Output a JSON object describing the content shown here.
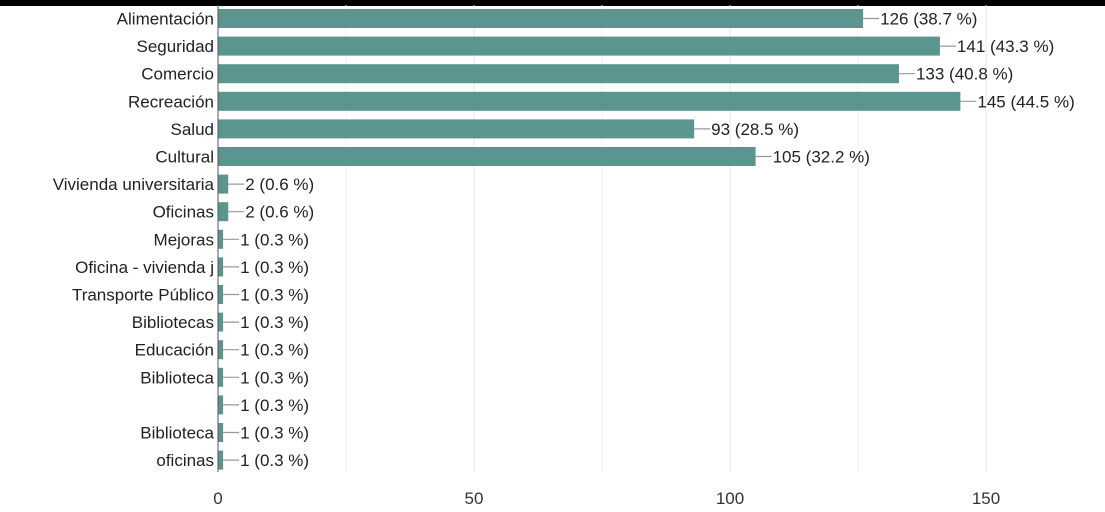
{
  "chart_data": {
    "type": "bar",
    "orientation": "horizontal",
    "categories": [
      "Alimentación",
      "Seguridad",
      "Comercio",
      "Recreación",
      "Salud",
      "Cultural",
      "Vivienda universitaria",
      "Oficinas",
      "Mejoras",
      "Oficina - vivienda j",
      "Transporte Público",
      "Bibliotecas",
      "Educación",
      "Biblioteca",
      "",
      "Biblioteca",
      "oficinas"
    ],
    "values": [
      126,
      141,
      133,
      145,
      93,
      105,
      2,
      2,
      1,
      1,
      1,
      1,
      1,
      1,
      1,
      1,
      1
    ],
    "data_labels": [
      "126 (38.7 %)",
      "141 (43.3 %)",
      "133 (40.8 %)",
      "145 (44.5 %)",
      "93 (28.5 %)",
      "105 (32.2 %)",
      "2 (0.6 %)",
      "2 (0.6 %)",
      "1 (0.3 %)",
      "1 (0.3 %)",
      "1 (0.3 %)",
      "1 (0.3 %)",
      "1 (0.3 %)",
      "1 (0.3 %)",
      "1 (0.3 %)",
      "1 (0.3 %)",
      "1 (0.3 %)"
    ],
    "xlim": [
      0,
      175
    ],
    "x_ticks": [
      "0",
      "50",
      "100",
      "150"
    ],
    "grid": true,
    "bar_color": "#5b9590"
  }
}
